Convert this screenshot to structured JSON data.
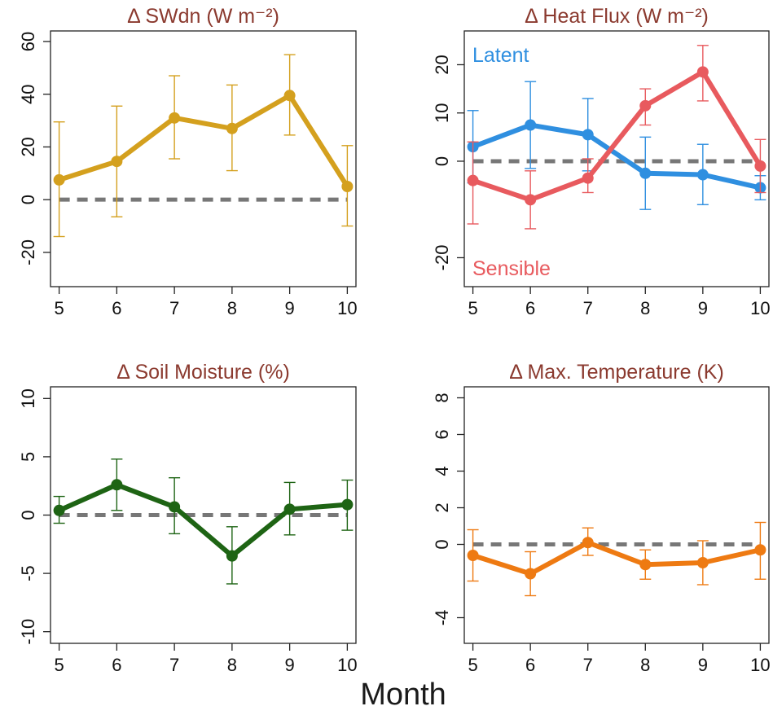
{
  "figure": {
    "xlabel": "Month"
  },
  "chart_data": [
    {
      "type": "line",
      "title": "Δ SWdn (W m⁻²)",
      "x": [
        5,
        6,
        7,
        8,
        9,
        10
      ],
      "ylim": [
        -33,
        64
      ],
      "yticks": [
        "-20",
        "0",
        "20",
        "40",
        "60"
      ],
      "ytick_values": [
        -20,
        0,
        20,
        40,
        60
      ],
      "xticks": [
        "5",
        "6",
        "7",
        "8",
        "9",
        "10"
      ],
      "reference_line": 0,
      "series": [
        {
          "color": "#d4a01e",
          "values": [
            7.5,
            14.5,
            31,
            27,
            39.5,
            5
          ],
          "err_low": [
            -14,
            -6.5,
            15.5,
            11,
            24.5,
            -10
          ],
          "err_high": [
            29.5,
            35.5,
            47,
            43.5,
            55,
            20.5
          ]
        }
      ]
    },
    {
      "type": "line",
      "title": "Δ Heat Flux (W m⁻²)",
      "x": [
        5,
        6,
        7,
        8,
        9,
        10
      ],
      "ylim": [
        -26,
        27
      ],
      "yticks": [
        "-20",
        "0",
        "10",
        "20"
      ],
      "ytick_values": [
        -20,
        0,
        10,
        20
      ],
      "xticks": [
        "5",
        "6",
        "7",
        "8",
        "9",
        "10"
      ],
      "reference_line": 0,
      "annotations": [
        {
          "text": "Latent",
          "color": "#2f8fe0"
        },
        {
          "text": "Sensible",
          "color": "#e85a5e"
        }
      ],
      "series": [
        {
          "name": "Latent",
          "color": "#2f8fe0",
          "values": [
            3,
            7.5,
            5.5,
            -2.5,
            -2.8,
            -5.5
          ],
          "err_low": [
            -4.5,
            -1.5,
            -2,
            -10,
            -9,
            -8
          ],
          "err_high": [
            10.5,
            16.5,
            13,
            5,
            3.5,
            -3
          ]
        },
        {
          "name": "Sensible",
          "color": "#e85a5e",
          "values": [
            -4,
            -8,
            -3.5,
            11.5,
            18.5,
            -1
          ],
          "err_low": [
            -13,
            -14,
            -6.5,
            7.5,
            12.5,
            -6.5
          ],
          "err_high": [
            4,
            -2,
            0.5,
            15,
            24,
            4.5
          ]
        }
      ]
    },
    {
      "type": "line",
      "title": "Δ Soil Moisture (%)",
      "x": [
        5,
        6,
        7,
        8,
        9,
        10
      ],
      "ylim": [
        -11,
        11
      ],
      "yticks": [
        "-10",
        "-5",
        "0",
        "5",
        "10"
      ],
      "ytick_values": [
        -10,
        -5,
        0,
        5,
        10
      ],
      "xticks": [
        "5",
        "6",
        "7",
        "8",
        "9",
        "10"
      ],
      "reference_line": 0,
      "series": [
        {
          "color": "#1e6414",
          "values": [
            0.4,
            2.6,
            0.7,
            -3.5,
            0.5,
            0.9
          ],
          "err_low": [
            -0.7,
            0.4,
            -1.6,
            -5.9,
            -1.7,
            -1.3
          ],
          "err_high": [
            1.6,
            4.8,
            3.2,
            -1,
            2.8,
            3
          ]
        }
      ]
    },
    {
      "type": "line",
      "title": "Δ Max. Temperature (K)",
      "x": [
        5,
        6,
        7,
        8,
        9,
        10
      ],
      "ylim": [
        -5.4,
        8.6
      ],
      "yticks": [
        "-4",
        "0",
        "2",
        "4",
        "6",
        "8"
      ],
      "ytick_values": [
        -4,
        0,
        2,
        4,
        6,
        8
      ],
      "xticks": [
        "5",
        "6",
        "7",
        "8",
        "9",
        "10"
      ],
      "reference_line": 0,
      "series": [
        {
          "color": "#ee7a12",
          "values": [
            -0.6,
            -1.6,
            0.1,
            -1.1,
            -1,
            -0.3
          ],
          "err_low": [
            -2,
            -2.8,
            -0.6,
            -1.9,
            -2.2,
            -1.9
          ],
          "err_high": [
            0.8,
            -0.4,
            0.9,
            -0.3,
            0.2,
            1.2
          ]
        }
      ]
    }
  ]
}
